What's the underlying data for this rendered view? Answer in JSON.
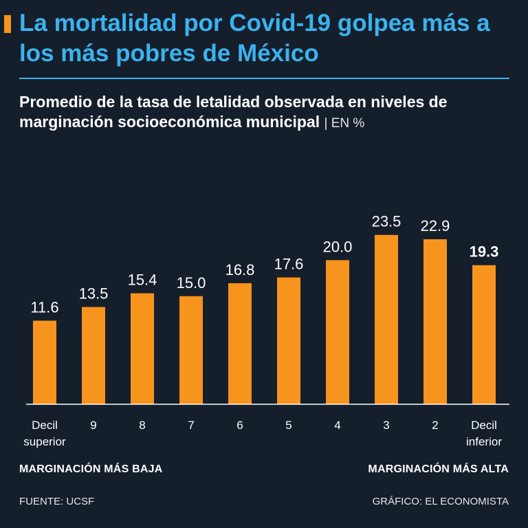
{
  "header": {
    "title": "La mortalidad por Covid-19 golpea más a los más pobres de México",
    "subtitle": "Promedio de la tasa de letalidad observada en niveles de marginación socioeconómica municipal",
    "unit": "| EN %"
  },
  "chart_data": {
    "type": "bar",
    "categories": [
      [
        "Decil",
        "superior"
      ],
      [
        "9"
      ],
      [
        "8"
      ],
      [
        "7"
      ],
      [
        "6"
      ],
      [
        "5"
      ],
      [
        "4"
      ],
      [
        "3"
      ],
      [
        "2"
      ],
      [
        "Decil",
        "inferior"
      ]
    ],
    "values": [
      11.6,
      13.5,
      15.4,
      15.0,
      16.8,
      17.6,
      20.0,
      23.5,
      22.9,
      19.3
    ],
    "value_labels": [
      "11.6",
      "13.5",
      "15.4",
      "15.0",
      "16.8",
      "17.6",
      "20.0",
      "23.5",
      "22.9",
      "19.3"
    ],
    "highlight_index": 9,
    "title": "Promedio de la tasa de letalidad observada en niveles de marginación socioeconómica municipal",
    "ylabel": "%",
    "ylim": [
      0,
      25
    ],
    "grid": false,
    "bar_color": "#f7941d"
  },
  "axis_notes": {
    "left": "MARGINACIÓN MÁS BAJA",
    "right": "MARGINACIÓN MÁS ALTA"
  },
  "footer": {
    "source": "FUENTE: UCSF",
    "credit": "GRÁFICO: EL ECONOMISTA"
  },
  "colors": {
    "background": "#151e2b",
    "title": "#3ab3f0",
    "accent": "#f7941d",
    "text": "#ffffff"
  }
}
